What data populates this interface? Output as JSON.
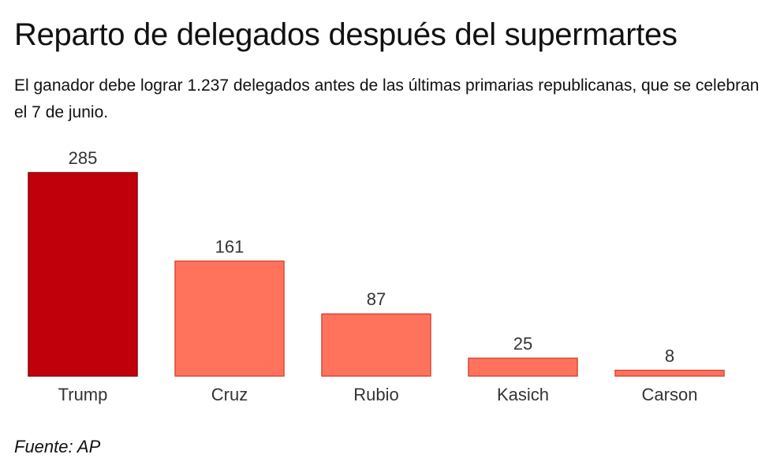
{
  "title": "Reparto de delegados después del supermartes",
  "subtitle": "El ganador debe lograr 1.237 delegados antes de las últimas primarias republicanas, que se celebran el 7 de junio.",
  "source": "Fuente: AP",
  "colors": {
    "highlight_fill": "#c0000b",
    "highlight_stroke": "#8e0008",
    "bar_fill": "#ff735c",
    "bar_stroke": "#d94a35"
  },
  "chart_data": {
    "type": "bar",
    "categories": [
      "Trump",
      "Cruz",
      "Rubio",
      "Kasich",
      "Carson"
    ],
    "values": [
      285,
      161,
      87,
      25,
      8
    ],
    "highlight": "Trump",
    "ylim": [
      0,
      285
    ],
    "grid": false,
    "legend": "none"
  }
}
